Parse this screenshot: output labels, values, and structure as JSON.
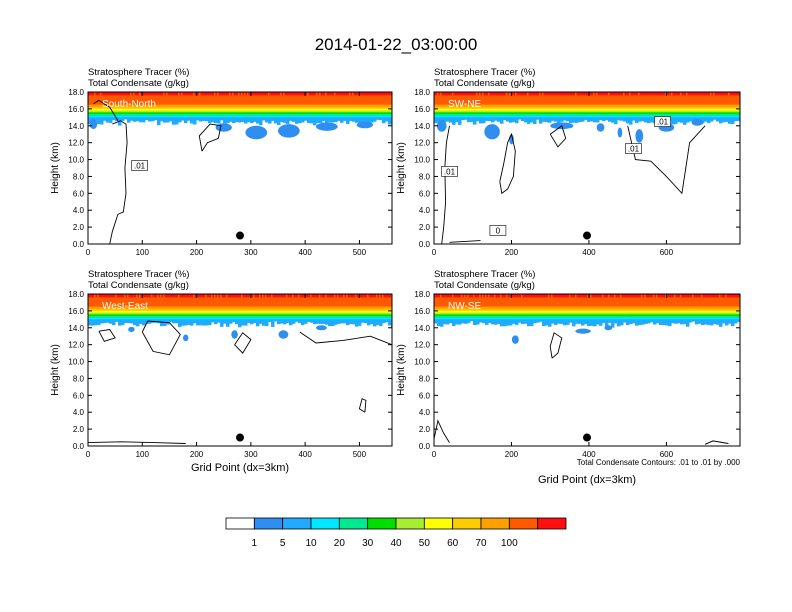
{
  "title": "2014-01-22_03:00:00",
  "colorbar": {
    "labels": [
      "1",
      "5",
      "10",
      "20",
      "30",
      "40",
      "50",
      "60",
      "70",
      "100"
    ],
    "colors": [
      "#ffffff",
      "#2f8ff0",
      "#22aaff",
      "#00e8ff",
      "#00e890",
      "#00e000",
      "#a8ee30",
      "#ffff00",
      "#ffcc00",
      "#ffa000",
      "#ff5a00",
      "#ff1010"
    ]
  },
  "chart_data": [
    {
      "type": "heatmap",
      "panel_label": "South-North",
      "subtitle_line1": "Stratosphere Tracer   (%)",
      "subtitle_line2": "Total Condensate   (g/kg)",
      "ylabel": "Height (km)",
      "xlabel": "",
      "xlim": [
        0,
        560
      ],
      "ylim": [
        0,
        18
      ],
      "xticks": [
        0,
        100,
        200,
        300,
        400,
        500
      ],
      "yticks": [
        "0.0",
        "2.0",
        "4.0",
        "6.0",
        "8.0",
        "10.0",
        "12.0",
        "14.0",
        "16.0",
        "18.0"
      ],
      "marker_x": 280,
      "marker_y": 1.0,
      "contour_labels": [
        ".01"
      ],
      "note": ""
    },
    {
      "type": "heatmap",
      "panel_label": "SW-NE",
      "subtitle_line1": "Stratosphere Tracer   (%)",
      "subtitle_line2": "Total Condensate   (g/kg)",
      "ylabel": "Height (km)",
      "xlabel": "",
      "xlim": [
        0,
        790
      ],
      "ylim": [
        0,
        18
      ],
      "xticks": [
        0,
        200,
        400,
        600
      ],
      "yticks": [
        "0.0",
        "2.0",
        "4.0",
        "6.0",
        "8.0",
        "10.0",
        "12.0",
        "14.0",
        "16.0",
        "18.0"
      ],
      "marker_x": 395,
      "marker_y": 1.0,
      "contour_labels": [
        ".01",
        ".01",
        ".01",
        "0"
      ],
      "note": ""
    },
    {
      "type": "heatmap",
      "panel_label": "West-East",
      "subtitle_line1": "Stratosphere Tracer   (%)",
      "subtitle_line2": "Total Condensate   (g/kg)",
      "ylabel": "Height (km)",
      "xlabel": "Grid Point (dx=3km)",
      "xlim": [
        0,
        560
      ],
      "ylim": [
        0,
        18
      ],
      "xticks": [
        0,
        100,
        200,
        300,
        400,
        500
      ],
      "yticks": [
        "0.0",
        "2.0",
        "4.0",
        "6.0",
        "8.0",
        "10.0",
        "12.0",
        "14.0",
        "16.0",
        "18.0"
      ],
      "marker_x": 280,
      "marker_y": 1.0,
      "contour_labels": [],
      "note": ""
    },
    {
      "type": "heatmap",
      "panel_label": "NW-SE",
      "subtitle_line1": "Stratosphere Tracer   (%)",
      "subtitle_line2": "Total Condensate   (g/kg)",
      "ylabel": "Height (km)",
      "xlabel": "Grid Point (dx=3km)",
      "xlim": [
        0,
        790
      ],
      "ylim": [
        0,
        18
      ],
      "xticks": [
        0,
        200,
        400,
        600
      ],
      "yticks": [
        "0.0",
        "2.0",
        "4.0",
        "6.0",
        "8.0",
        "10.0",
        "12.0",
        "14.0",
        "16.0",
        "18.0"
      ],
      "marker_x": 395,
      "marker_y": 1.0,
      "contour_labels": [],
      "note": "Total Condensate Contours: .01 to .01 by .000"
    }
  ]
}
